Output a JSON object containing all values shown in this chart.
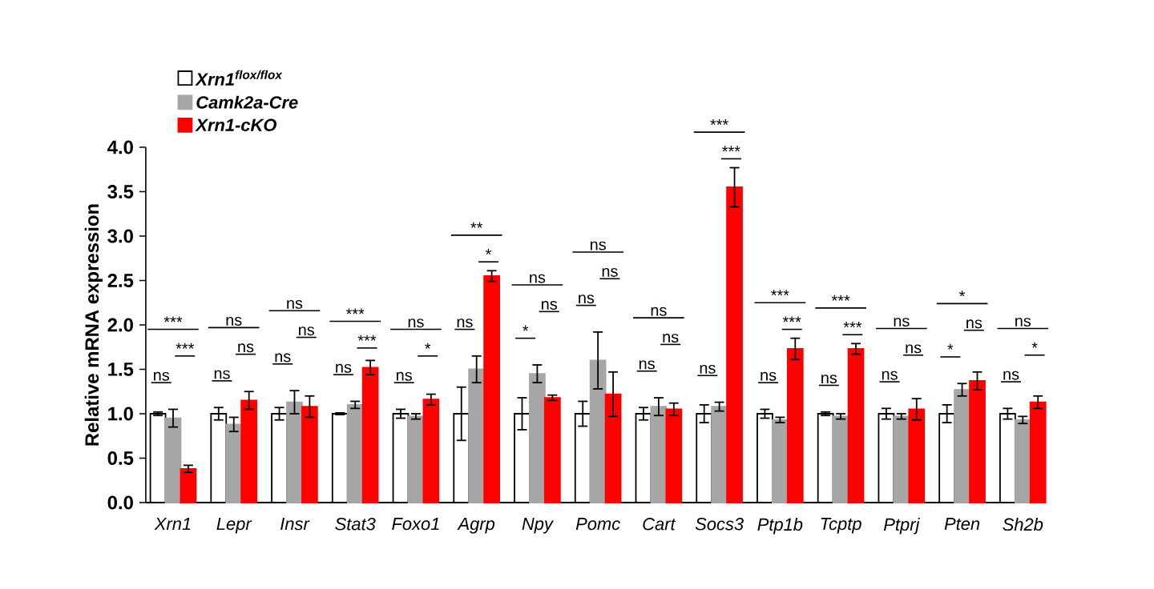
{
  "chart_data": {
    "type": "bar",
    "ylabel": "Relative mRNA expression",
    "categories": [
      "Xrn1",
      "Lepr",
      "Insr",
      "Stat3",
      "Foxo1",
      "Agrp",
      "Npy",
      "Pomc",
      "Cart",
      "Socs3",
      "Ptp1b",
      "Tcptp",
      "Ptprj",
      "Pten",
      "Sh2b"
    ],
    "series": [
      {
        "name": "Xrn1$^{flox/flox}$",
        "color": "#ffffff",
        "values": [
          1.0,
          1.0,
          1.0,
          1.0,
          1.0,
          1.0,
          1.0,
          1.0,
          1.0,
          1.0,
          1.0,
          1.0,
          1.0,
          1.0,
          1.0
        ],
        "errors": [
          0.02,
          0.07,
          0.07,
          0.01,
          0.05,
          0.3,
          0.18,
          0.14,
          0.07,
          0.1,
          0.05,
          0.02,
          0.06,
          0.1,
          0.06
        ]
      },
      {
        "name": "Camk2a-Cre",
        "color": "#a6a6a6",
        "values": [
          0.95,
          0.88,
          1.13,
          1.1,
          0.97,
          1.5,
          1.45,
          1.6,
          1.08,
          1.08,
          0.93,
          0.97,
          0.97,
          1.27,
          0.93
        ],
        "errors": [
          0.1,
          0.08,
          0.13,
          0.04,
          0.03,
          0.15,
          0.1,
          0.32,
          0.1,
          0.05,
          0.03,
          0.03,
          0.03,
          0.07,
          0.04
        ]
      },
      {
        "name": "Xrn1-cKO",
        "color": "#ff0000",
        "values": [
          0.38,
          1.15,
          1.08,
          1.52,
          1.16,
          2.55,
          1.18,
          1.22,
          1.05,
          3.55,
          1.73,
          1.73,
          1.05,
          1.37,
          1.13
        ],
        "errors": [
          0.04,
          0.1,
          0.12,
          0.08,
          0.06,
          0.06,
          0.03,
          0.25,
          0.07,
          0.22,
          0.12,
          0.06,
          0.12,
          0.1,
          0.07
        ]
      }
    ],
    "ylim": [
      0,
      4.0
    ],
    "yticks": [
      {
        "value": 0,
        "label": "0.0"
      },
      {
        "value": 0.5,
        "label": "0.5"
      },
      {
        "value": 1,
        "label": "1.0"
      },
      {
        "value": 1.5,
        "label": "1.5"
      },
      {
        "value": 2,
        "label": "2.0"
      },
      {
        "value": 2.5,
        "label": "2.5"
      },
      {
        "value": 3,
        "label": "3.0"
      },
      {
        "value": 3.5,
        "label": "3.5"
      },
      {
        "value": 4,
        "label": "4.0"
      }
    ],
    "legend": "top left",
    "annotations": [
      "***",
      "ns",
      "***",
      "ns",
      "ns",
      "ns",
      "ns",
      "ns",
      "ns",
      "***",
      "ns",
      "***",
      "ns",
      "ns",
      "*",
      "**",
      "ns",
      "*",
      "ns",
      "*",
      "ns",
      "ns",
      "ns",
      "ns",
      "ns",
      "ns",
      "ns",
      "***",
      "ns",
      "***",
      "***",
      "ns",
      "***",
      "***",
      "ns",
      "***",
      "ns",
      "ns",
      "ns",
      "*",
      "*",
      "ns",
      "ns",
      "ns",
      "*"
    ]
  }
}
